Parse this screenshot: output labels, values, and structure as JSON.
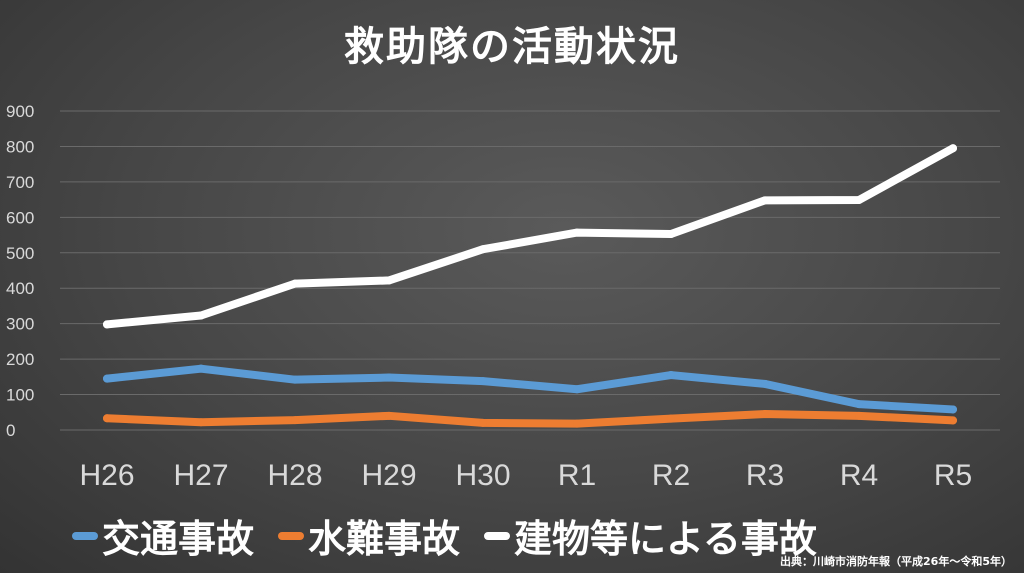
{
  "chart_data": {
    "type": "line",
    "title": "救助隊の活動状況",
    "categories": [
      "H26",
      "H27",
      "H28",
      "H29",
      "H30",
      "R1",
      "R2",
      "R3",
      "R4",
      "R5"
    ],
    "y_ticks": [
      "900",
      "800",
      "700",
      "600",
      "500",
      "400",
      "300",
      "200",
      "100",
      "0"
    ],
    "ylim": [
      0,
      900
    ],
    "grid": true,
    "legend_position": "bottom",
    "series": [
      {
        "name": "交通事故",
        "color": "#5b9bd5",
        "values": [
          145,
          173,
          142,
          148,
          138,
          115,
          155,
          130,
          73,
          58
        ]
      },
      {
        "name": "水難事故",
        "color": "#ed7d31",
        "values": [
          33,
          22,
          28,
          40,
          20,
          18,
          32,
          45,
          40,
          27
        ]
      },
      {
        "name": "建物等による事故",
        "color": "#ffffff",
        "values": [
          298,
          323,
          413,
          422,
          510,
          557,
          553,
          648,
          649,
          795
        ]
      }
    ],
    "source": "出典：川崎市消防年報（平成26年～令和5年）"
  }
}
